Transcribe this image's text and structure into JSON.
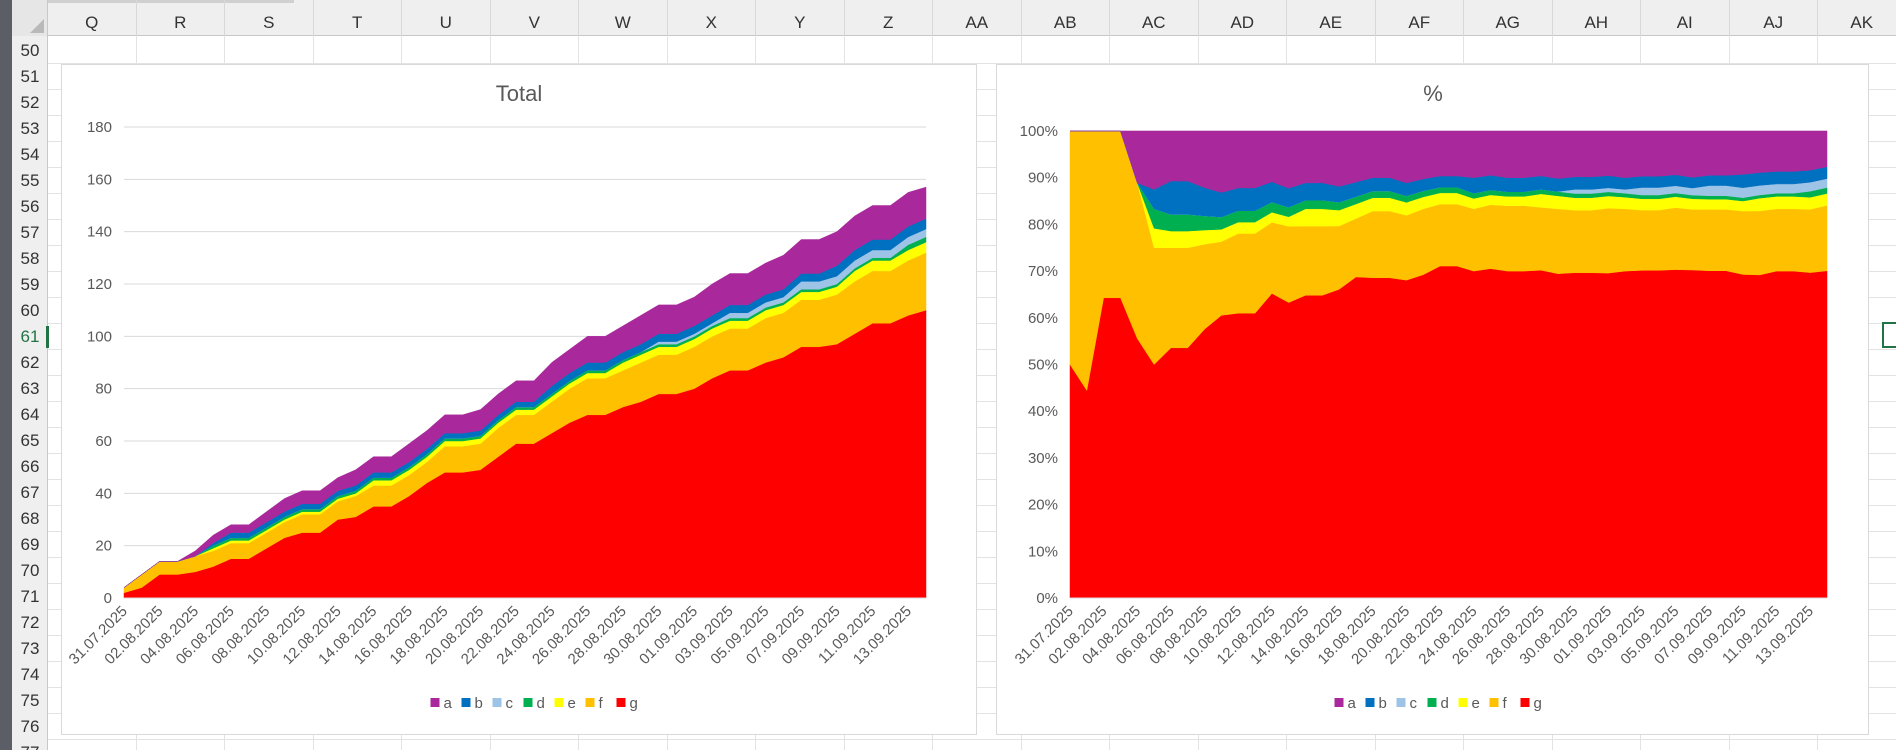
{
  "spreadsheet": {
    "columns": [
      "Q",
      "R",
      "S",
      "T",
      "U",
      "V",
      "W",
      "X",
      "Y",
      "Z",
      "AA",
      "AB",
      "AC",
      "AD",
      "AE",
      "AF",
      "AG",
      "AH",
      "AI",
      "AJ",
      "AK"
    ],
    "rows": [
      "50",
      "51",
      "52",
      "53",
      "54",
      "55",
      "56",
      "57",
      "58",
      "59",
      "60",
      "61",
      "62",
      "63",
      "64",
      "65",
      "66",
      "67",
      "68",
      "69",
      "70",
      "71",
      "72",
      "73",
      "74",
      "75",
      "76",
      "77"
    ],
    "active_row": "61"
  },
  "colors": {
    "g": "#ff0000",
    "f": "#ffc000",
    "e": "#ffff00",
    "d": "#00b050",
    "c": "#9dc3e6",
    "b": "#0070c0",
    "a": "#a9299c"
  },
  "chart_data": [
    {
      "type": "area",
      "stacked": true,
      "title": "Total",
      "x": [
        "31.07.2025",
        "01.08.2025",
        "02.08.2025",
        "03.08.2025",
        "04.08.2025",
        "05.08.2025",
        "06.08.2025",
        "07.08.2025",
        "08.08.2025",
        "09.08.2025",
        "10.08.2025",
        "11.08.2025",
        "12.08.2025",
        "13.08.2025",
        "14.08.2025",
        "15.08.2025",
        "16.08.2025",
        "17.08.2025",
        "18.08.2025",
        "19.08.2025",
        "20.08.2025",
        "21.08.2025",
        "22.08.2025",
        "23.08.2025",
        "24.08.2025",
        "25.08.2025",
        "26.08.2025",
        "27.08.2025",
        "28.08.2025",
        "29.08.2025",
        "30.08.2025",
        "31.08.2025",
        "01.09.2025",
        "02.09.2025",
        "03.09.2025",
        "04.09.2025",
        "05.09.2025",
        "06.09.2025",
        "07.09.2025",
        "08.09.2025",
        "09.09.2025",
        "10.09.2025",
        "11.09.2025",
        "12.09.2025",
        "13.09.2025",
        "14.09.2025"
      ],
      "x_tick_labels": [
        "31.07.2025",
        "02.08.2025",
        "04.08.2025",
        "06.08.2025",
        "08.08.2025",
        "10.08.2025",
        "12.08.2025",
        "14.08.2025",
        "16.08.2025",
        "18.08.2025",
        "20.08.2025",
        "22.08.2025",
        "24.08.2025",
        "26.08.2025",
        "28.08.2025",
        "30.08.2025",
        "01.09.2025",
        "03.09.2025",
        "05.09.2025",
        "07.09.2025",
        "09.09.2025",
        "11.09.2025",
        "13.09.2025"
      ],
      "y_ticks": [
        0,
        20,
        40,
        60,
        80,
        100,
        120,
        140,
        160,
        180
      ],
      "ylim": [
        0,
        180
      ],
      "grid": true,
      "legend": "bottom",
      "series": [
        {
          "name": "g",
          "values": [
            2,
            4,
            9,
            9,
            10,
            12,
            15,
            15,
            19,
            23,
            25,
            25,
            30,
            31,
            35,
            35,
            39,
            44,
            48,
            48,
            49,
            54,
            59,
            59,
            63,
            67,
            70,
            70,
            73,
            75,
            78,
            78,
            80,
            84,
            87,
            87,
            90,
            92,
            96,
            96,
            97,
            101,
            105,
            105,
            108,
            110
          ]
        },
        {
          "name": "f",
          "values": [
            2,
            5,
            5,
            5,
            6,
            6,
            6,
            6,
            6,
            6,
            7,
            7,
            7,
            8,
            8,
            8,
            8,
            8,
            10,
            10,
            10,
            11,
            11,
            11,
            12,
            13,
            14,
            14,
            14,
            15,
            15,
            15,
            16,
            16,
            16,
            16,
            17,
            17,
            18,
            18,
            19,
            20,
            20,
            20,
            21,
            22
          ]
        },
        {
          "name": "e",
          "values": [
            0,
            0,
            0,
            0,
            0,
            1,
            1,
            1,
            1,
            1,
            1,
            1,
            1,
            1,
            2,
            2,
            2,
            2,
            2,
            2,
            2,
            2,
            2,
            2,
            2,
            2,
            2,
            2,
            3,
            3,
            3,
            3,
            3,
            3,
            3,
            3,
            3,
            3,
            3,
            3,
            3,
            4,
            4,
            4,
            4,
            4
          ]
        },
        {
          "name": "d",
          "values": [
            0,
            0,
            0,
            0,
            0,
            1,
            1,
            1,
            1,
            1,
            1,
            1,
            1,
            1,
            1,
            1,
            1,
            1,
            1,
            1,
            1,
            1,
            1,
            1,
            1,
            1,
            1,
            1,
            1,
            1,
            1,
            1,
            1,
            1,
            1,
            1,
            1,
            1,
            1,
            1,
            1,
            1,
            1,
            1,
            2,
            2
          ]
        },
        {
          "name": "c",
          "values": [
            0,
            0,
            0,
            0,
            0,
            0,
            0,
            0,
            0,
            0,
            0,
            0,
            0,
            0,
            0,
            0,
            0,
            0,
            0,
            0,
            0,
            0,
            0,
            0,
            0,
            0,
            0,
            0,
            0,
            0,
            1,
            1,
            1,
            1,
            2,
            2,
            2,
            2,
            3,
            3,
            3,
            3,
            3,
            3,
            3,
            3
          ]
        },
        {
          "name": "b",
          "values": [
            0,
            0,
            0,
            0,
            0,
            1,
            2,
            2,
            2,
            2,
            2,
            2,
            2,
            2,
            2,
            2,
            2,
            2,
            2,
            2,
            2,
            2,
            2,
            2,
            3,
            3,
            3,
            3,
            3,
            3,
            3,
            3,
            3,
            3,
            3,
            3,
            3,
            3,
            3,
            3,
            4,
            4,
            4,
            4,
            4,
            4
          ]
        },
        {
          "name": "a",
          "values": [
            0,
            0,
            0,
            0,
            2,
            3,
            3,
            3,
            4,
            5,
            5,
            5,
            5,
            6,
            6,
            6,
            7,
            7,
            7,
            7,
            8,
            8,
            8,
            8,
            9,
            9,
            10,
            10,
            10,
            11,
            11,
            11,
            11,
            12,
            12,
            12,
            12,
            13,
            13,
            13,
            13,
            13,
            13,
            13,
            13,
            12
          ]
        }
      ]
    },
    {
      "type": "area",
      "stacked": true,
      "percent": true,
      "title": "%",
      "x_tick_labels": [
        "31.07.2025",
        "02.08.2025",
        "04.08.2025",
        "06.08.2025",
        "08.08.2025",
        "10.08.2025",
        "12.08.2025",
        "14.08.2025",
        "16.08.2025",
        "18.08.2025",
        "20.08.2025",
        "22.08.2025",
        "24.08.2025",
        "26.08.2025",
        "28.08.2025",
        "30.08.2025",
        "01.09.2025",
        "03.09.2025",
        "05.09.2025",
        "07.09.2025",
        "09.09.2025",
        "11.09.2025",
        "13.09.2025"
      ],
      "y_ticks": [
        "0%",
        "10%",
        "20%",
        "30%",
        "40%",
        "50%",
        "60%",
        "70%",
        "80%",
        "90%",
        "100%"
      ],
      "ylim": [
        0,
        100
      ],
      "legend": "bottom",
      "source": "same series as Total, normalized per date"
    }
  ]
}
